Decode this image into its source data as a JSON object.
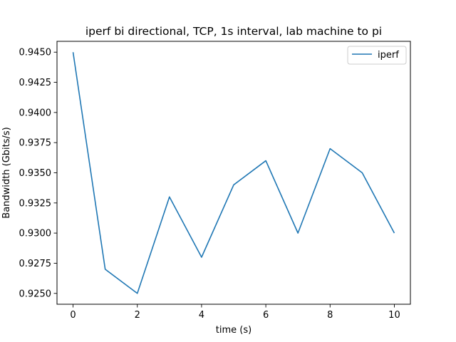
{
  "chart_data": {
    "type": "line",
    "title": "iperf bi directional, TCP, 1s interval, lab  machine to pi",
    "xlabel": "time (s)",
    "ylabel": "Bandwidth (Gbits/s)",
    "xlim": [
      -0.5,
      10.5
    ],
    "ylim": [
      0.9241,
      0.9459
    ],
    "xticks": [
      0,
      2,
      4,
      6,
      8,
      10
    ],
    "xtick_labels": [
      "0",
      "2",
      "4",
      "6",
      "8",
      "10"
    ],
    "yticks": [
      0.925,
      0.9275,
      0.93,
      0.9325,
      0.935,
      0.9375,
      0.94,
      0.9425,
      0.945
    ],
    "ytick_labels": [
      "0.9250",
      "0.9275",
      "0.9300",
      "0.9325",
      "0.9350",
      "0.9375",
      "0.9400",
      "0.9425",
      "0.9450"
    ],
    "grid": false,
    "legend_position": "upper-right",
    "series": [
      {
        "name": "iperf",
        "color": "#1f77b4",
        "x": [
          0,
          1,
          2,
          3,
          4,
          5,
          6,
          7,
          8,
          9,
          10
        ],
        "y": [
          0.945,
          0.927,
          0.925,
          0.933,
          0.928,
          0.934,
          0.936,
          0.93,
          0.937,
          0.935,
          0.93
        ]
      }
    ]
  }
}
